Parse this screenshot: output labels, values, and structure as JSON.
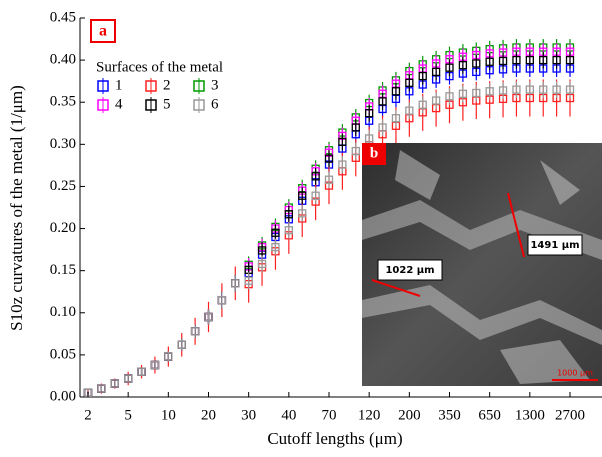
{
  "chart_data": {
    "type": "errorbar",
    "panel_label": "a",
    "x_label": "Cutoff lengths (μm)",
    "y_label": "S10z curvatures of the metal (1/μm)",
    "legend_title": "Surfaces of the metal",
    "categories": [
      "2",
      null,
      null,
      "5",
      null,
      null,
      "10",
      null,
      null,
      "20",
      null,
      null,
      "30",
      null,
      null,
      "40",
      null,
      null,
      "70",
      null,
      null,
      "120",
      null,
      null,
      "200",
      null,
      null,
      "350",
      null,
      null,
      "650",
      null,
      null,
      "1300",
      null,
      null,
      "2700"
    ],
    "ylim": [
      0,
      0.45
    ],
    "yticks": [
      {
        "value": 0,
        "label": "0.00"
      },
      {
        "value": 0.05,
        "label": "0.05"
      },
      {
        "value": 0.1,
        "label": "0.10"
      },
      {
        "value": 0.15,
        "label": "0.15"
      },
      {
        "value": 0.2,
        "label": "0.20"
      },
      {
        "value": 0.25,
        "label": "0.25"
      },
      {
        "value": 0.3,
        "label": "0.30"
      },
      {
        "value": 0.35,
        "label": "0.35"
      },
      {
        "value": 0.4,
        "label": "0.40"
      },
      {
        "value": 0.45,
        "label": "0.45"
      }
    ],
    "series": [
      {
        "name": "1",
        "color": "#0000ff",
        "values": [
          0.005,
          0.01,
          0.016,
          0.022,
          0.03,
          0.038,
          0.048,
          0.062,
          0.078,
          0.095,
          0.115,
          0.135,
          0.147,
          0.169,
          0.19,
          0.211,
          0.233,
          0.255,
          0.276,
          0.295,
          0.312,
          0.328,
          0.342,
          0.354,
          0.363,
          0.371,
          0.377,
          0.381,
          0.384,
          0.386,
          0.388,
          0.389,
          0.39,
          0.39,
          0.39,
          0.39,
          0.39
        ],
        "errors": [
          0.002,
          0.003,
          0.003,
          0.004,
          0.004,
          0.005,
          0.006,
          0.007,
          0.008,
          0.009,
          0.01,
          0.01,
          0.01,
          0.01,
          0.01,
          0.01,
          0.01,
          0.01,
          0.01,
          0.01,
          0.01,
          0.01,
          0.01,
          0.01,
          0.01,
          0.01,
          0.01,
          0.01,
          0.01,
          0.01,
          0.01,
          0.01,
          0.01,
          0.01,
          0.01,
          0.01,
          0.01
        ]
      },
      {
        "name": "2",
        "color": "#ff2020",
        "values": [
          0.005,
          0.01,
          0.016,
          0.022,
          0.03,
          0.038,
          0.048,
          0.062,
          0.078,
          0.095,
          0.115,
          0.135,
          0.134,
          0.154,
          0.173,
          0.192,
          0.212,
          0.232,
          0.251,
          0.268,
          0.284,
          0.299,
          0.312,
          0.322,
          0.331,
          0.338,
          0.343,
          0.347,
          0.35,
          0.352,
          0.353,
          0.354,
          0.355,
          0.355,
          0.355,
          0.355,
          0.355
        ],
        "errors": [
          0.004,
          0.006,
          0.006,
          0.008,
          0.008,
          0.01,
          0.012,
          0.014,
          0.016,
          0.018,
          0.02,
          0.02,
          0.022,
          0.022,
          0.022,
          0.022,
          0.022,
          0.022,
          0.022,
          0.022,
          0.022,
          0.022,
          0.022,
          0.022,
          0.022,
          0.022,
          0.022,
          0.022,
          0.022,
          0.022,
          0.022,
          0.022,
          0.022,
          0.022,
          0.022,
          0.022,
          0.022
        ]
      },
      {
        "name": "3",
        "color": "#009a00",
        "values": [
          0.005,
          0.01,
          0.016,
          0.022,
          0.03,
          0.038,
          0.048,
          0.062,
          0.078,
          0.095,
          0.115,
          0.135,
          0.157,
          0.18,
          0.202,
          0.225,
          0.248,
          0.271,
          0.293,
          0.314,
          0.332,
          0.349,
          0.364,
          0.376,
          0.387,
          0.395,
          0.401,
          0.406,
          0.409,
          0.411,
          0.413,
          0.414,
          0.415,
          0.415,
          0.415,
          0.415,
          0.415
        ],
        "errors": [
          0.002,
          0.003,
          0.003,
          0.004,
          0.004,
          0.005,
          0.006,
          0.007,
          0.008,
          0.009,
          0.01,
          0.01,
          0.01,
          0.01,
          0.01,
          0.01,
          0.01,
          0.01,
          0.01,
          0.01,
          0.01,
          0.01,
          0.01,
          0.01,
          0.01,
          0.01,
          0.01,
          0.01,
          0.01,
          0.01,
          0.01,
          0.01,
          0.01,
          0.01,
          0.01,
          0.01,
          0.01
        ]
      },
      {
        "name": "4",
        "color": "#ff00ff",
        "values": [
          0.005,
          0.01,
          0.016,
          0.022,
          0.03,
          0.038,
          0.048,
          0.062,
          0.078,
          0.095,
          0.115,
          0.135,
          0.155,
          0.178,
          0.2,
          0.222,
          0.245,
          0.268,
          0.29,
          0.31,
          0.328,
          0.345,
          0.36,
          0.372,
          0.382,
          0.39,
          0.396,
          0.401,
          0.404,
          0.406,
          0.408,
          0.409,
          0.41,
          0.41,
          0.41,
          0.41,
          0.41
        ],
        "errors": [
          0.002,
          0.003,
          0.003,
          0.004,
          0.004,
          0.005,
          0.006,
          0.007,
          0.008,
          0.009,
          0.01,
          0.01,
          0.01,
          0.01,
          0.01,
          0.01,
          0.01,
          0.01,
          0.01,
          0.01,
          0.01,
          0.01,
          0.01,
          0.01,
          0.01,
          0.01,
          0.01,
          0.01,
          0.01,
          0.01,
          0.01,
          0.01,
          0.01,
          0.01,
          0.01,
          0.01,
          0.01
        ]
      },
      {
        "name": "5",
        "color": "#000000",
        "values": [
          0.005,
          0.01,
          0.016,
          0.022,
          0.03,
          0.038,
          0.048,
          0.062,
          0.078,
          0.095,
          0.115,
          0.135,
          0.151,
          0.174,
          0.195,
          0.217,
          0.239,
          0.262,
          0.283,
          0.303,
          0.32,
          0.337,
          0.351,
          0.363,
          0.373,
          0.381,
          0.386,
          0.391,
          0.394,
          0.396,
          0.398,
          0.399,
          0.4,
          0.4,
          0.4,
          0.4,
          0.4
        ],
        "errors": [
          0.002,
          0.003,
          0.003,
          0.004,
          0.004,
          0.005,
          0.006,
          0.007,
          0.008,
          0.009,
          0.01,
          0.01,
          0.01,
          0.01,
          0.01,
          0.01,
          0.01,
          0.01,
          0.01,
          0.01,
          0.01,
          0.01,
          0.01,
          0.01,
          0.01,
          0.01,
          0.01,
          0.01,
          0.01,
          0.01,
          0.01,
          0.01,
          0.01,
          0.01,
          0.01,
          0.01,
          0.01
        ]
      },
      {
        "name": "6",
        "color": "#999999",
        "values": [
          0.005,
          0.01,
          0.016,
          0.022,
          0.03,
          0.038,
          0.048,
          0.062,
          0.078,
          0.095,
          0.115,
          0.135,
          0.138,
          0.158,
          0.178,
          0.198,
          0.218,
          0.239,
          0.258,
          0.276,
          0.292,
          0.307,
          0.32,
          0.331,
          0.34,
          0.347,
          0.352,
          0.357,
          0.36,
          0.361,
          0.363,
          0.364,
          0.365,
          0.365,
          0.365,
          0.365,
          0.365
        ],
        "errors": [
          0.002,
          0.003,
          0.003,
          0.004,
          0.004,
          0.005,
          0.006,
          0.007,
          0.008,
          0.009,
          0.01,
          0.01,
          0.01,
          0.01,
          0.01,
          0.01,
          0.01,
          0.01,
          0.01,
          0.01,
          0.01,
          0.01,
          0.01,
          0.01,
          0.01,
          0.01,
          0.01,
          0.01,
          0.01,
          0.01,
          0.01,
          0.01,
          0.01,
          0.01,
          0.01,
          0.01,
          0.01
        ]
      }
    ],
    "inset": {
      "label": "b",
      "annotations": [
        "1491 μm",
        "1022 μm",
        "1000 μm"
      ]
    }
  }
}
